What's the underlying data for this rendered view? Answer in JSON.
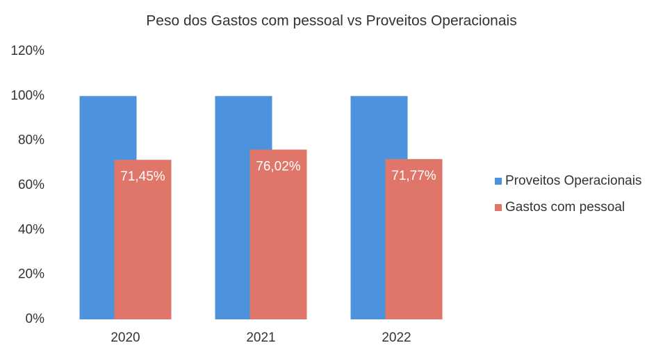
{
  "chart_data": {
    "type": "bar",
    "title": "Peso dos Gastos com pessoal vs Proveitos Operacionais",
    "categories": [
      "2020",
      "2021",
      "2022"
    ],
    "series": [
      {
        "name": "Proveitos Operacionais",
        "color": "#4d92dd",
        "values": [
          100,
          100,
          100
        ]
      },
      {
        "name": "Gastos com pessoal",
        "color": "#e0766a",
        "values": [
          71.45,
          76.02,
          71.77
        ],
        "value_labels": [
          "71,45%",
          "76,02%",
          "71,77%"
        ]
      }
    ],
    "ylim": [
      0,
      120
    ],
    "yticks": [
      {
        "value": 0,
        "label": "0%"
      },
      {
        "value": 20,
        "label": "20%"
      },
      {
        "value": 40,
        "label": "40%"
      },
      {
        "value": 60,
        "label": "60%"
      },
      {
        "value": 80,
        "label": "80%"
      },
      {
        "value": 100,
        "label": "100%"
      },
      {
        "value": 120,
        "label": "120%"
      }
    ],
    "grid": false,
    "legend": "right"
  }
}
